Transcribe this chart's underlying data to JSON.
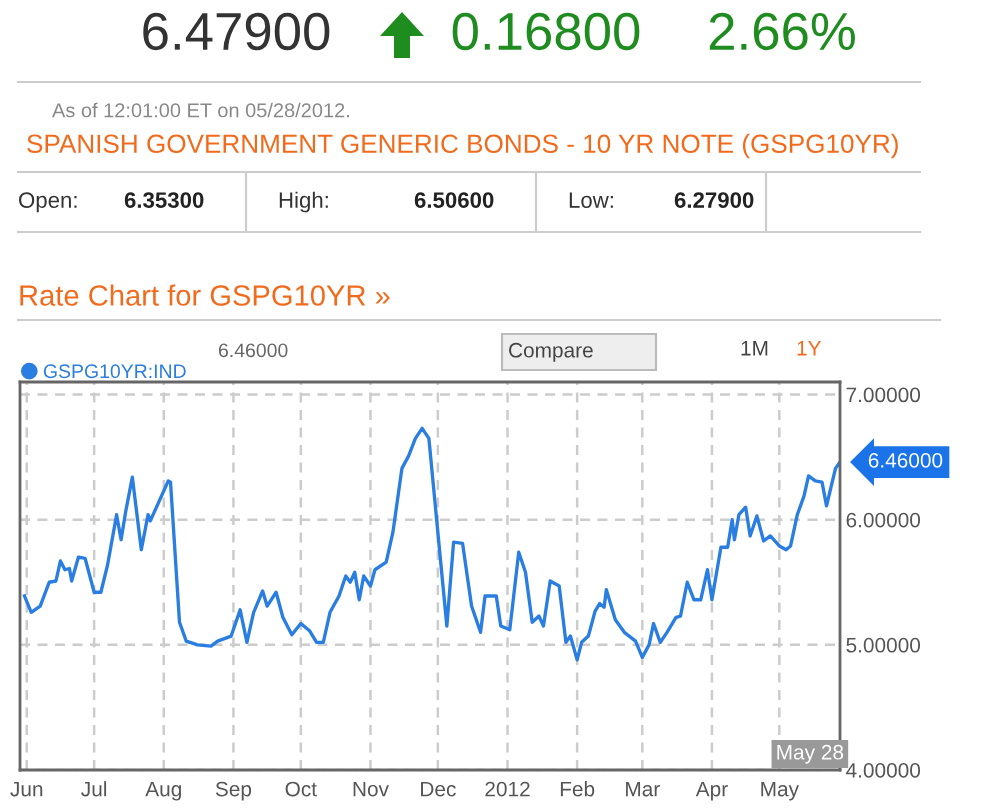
{
  "chart_data": {
    "type": "line",
    "title": "SPANISH GOVERNMENT GENERIC BONDS - 10 YR NOTE (GSPG10YR)",
    "subtitle": "Rate Chart for GSPG10YR »",
    "annotations": [
      "6.47900",
      "0.16800",
      "2.66%",
      "As of 12:01:00 ET on 05/28/2012.",
      "Open:",
      "6.35300",
      "High:",
      "6.50600",
      "Low:",
      "6.27900",
      "Compare",
      "1M",
      "1Y",
      "6.46000",
      {
        "text": "6.46000",
        "x": "2012-05-28",
        "y": 6.46
      },
      "May 28"
    ],
    "series": [
      {
        "name": "GSPG10YR:IND",
        "color": "#2a7de1",
        "x": [
          "2011-05-31",
          "2011-06-03",
          "2011-06-07",
          "2011-06-11",
          "2011-06-14",
          "2011-06-16",
          "2011-06-18",
          "2011-06-20",
          "2011-06-21",
          "2011-06-24",
          "2011-06-27",
          "2011-07-01",
          "2011-07-04",
          "2011-07-07",
          "2011-07-11",
          "2011-07-13",
          "2011-07-15",
          "2011-07-18",
          "2011-07-22",
          "2011-07-25",
          "2011-07-26",
          "2011-08-03",
          "2011-08-04",
          "2011-08-08",
          "2011-08-11",
          "2011-08-16",
          "2011-08-22",
          "2011-08-25",
          "2011-08-31",
          "2011-09-04",
          "2011-09-07",
          "2011-09-10",
          "2011-09-14",
          "2011-09-16",
          "2011-09-20",
          "2011-09-23",
          "2011-09-27",
          "2011-10-01",
          "2011-10-05",
          "2011-10-08",
          "2011-10-11",
          "2011-10-14",
          "2011-10-18",
          "2011-10-21",
          "2011-10-23",
          "2011-10-25",
          "2011-10-27",
          "2011-10-29",
          "2011-11-01",
          "2011-11-03",
          "2011-11-08",
          "2011-11-11",
          "2011-11-15",
          "2011-11-18",
          "2011-11-21",
          "2011-11-24",
          "2011-11-27",
          "2011-12-02",
          "2011-12-05",
          "2011-12-08",
          "2011-12-12",
          "2011-12-16",
          "2011-12-20",
          "2011-12-22",
          "2011-12-27",
          "2011-12-29",
          "2012-01-02",
          "2012-01-06",
          "2012-01-09",
          "2012-01-12",
          "2012-01-15",
          "2012-01-17",
          "2012-01-20",
          "2012-01-24",
          "2012-01-27",
          "2012-01-29",
          "2012-02-01",
          "2012-02-03",
          "2012-02-06",
          "2012-02-09",
          "2012-02-11",
          "2012-02-13",
          "2012-02-14",
          "2012-02-18",
          "2012-02-22",
          "2012-02-27",
          "2012-03-01",
          "2012-03-04",
          "2012-03-06",
          "2012-03-09",
          "2012-03-12",
          "2012-03-16",
          "2012-03-18",
          "2012-03-21",
          "2012-03-24",
          "2012-03-27",
          "2012-03-30",
          "2012-04-01",
          "2012-04-05",
          "2012-04-08",
          "2012-04-10",
          "2012-04-11",
          "2012-04-13",
          "2012-04-16",
          "2012-04-18",
          "2012-04-21",
          "2012-04-24",
          "2012-04-27",
          "2012-05-01",
          "2012-05-04",
          "2012-05-06",
          "2012-05-09",
          "2012-05-12",
          "2012-05-14",
          "2012-05-17",
          "2012-05-20",
          "2012-05-22",
          "2012-05-24",
          "2012-05-26",
          "2012-05-28"
        ],
        "values": [
          5.39,
          5.26,
          5.31,
          5.5,
          5.51,
          5.67,
          5.6,
          5.61,
          5.51,
          5.7,
          5.69,
          5.42,
          5.42,
          5.64,
          6.04,
          5.84,
          6.06,
          6.34,
          5.76,
          6.04,
          5.99,
          6.31,
          6.3,
          5.18,
          5.03,
          5.0,
          4.99,
          5.03,
          5.07,
          5.28,
          5.02,
          5.26,
          5.43,
          5.31,
          5.42,
          5.22,
          5.08,
          5.17,
          5.11,
          5.02,
          5.02,
          5.26,
          5.39,
          5.55,
          5.5,
          5.58,
          5.36,
          5.55,
          5.47,
          5.6,
          5.66,
          5.9,
          6.41,
          6.51,
          6.65,
          6.73,
          6.65,
          5.71,
          5.15,
          5.82,
          5.81,
          5.31,
          5.1,
          5.39,
          5.39,
          5.15,
          5.12,
          5.74,
          5.58,
          5.18,
          5.23,
          5.15,
          5.51,
          5.47,
          5.02,
          5.07,
          4.88,
          5.02,
          5.07,
          5.27,
          5.33,
          5.3,
          5.44,
          5.2,
          5.1,
          5.03,
          4.9,
          5.0,
          5.17,
          5.02,
          5.1,
          5.22,
          5.23,
          5.5,
          5.36,
          5.36,
          5.6,
          5.36,
          5.78,
          5.78,
          6.0,
          5.84,
          6.04,
          6.1,
          5.87,
          6.03,
          5.83,
          5.87,
          5.79,
          5.76,
          5.79,
          6.04,
          6.19,
          6.35,
          6.31,
          6.3,
          6.11,
          6.26,
          6.41,
          6.46
        ]
      }
    ],
    "xlim": [
      "2011-05-29",
      "2012-05-28"
    ],
    "xticks": [
      {
        "value": "2011-06-01",
        "label": "Jun"
      },
      {
        "value": "2011-07-01",
        "label": "Jul"
      },
      {
        "value": "2011-08-01",
        "label": "Aug"
      },
      {
        "value": "2011-09-01",
        "label": "Sep"
      },
      {
        "value": "2011-10-01",
        "label": "Oct"
      },
      {
        "value": "2011-11-01",
        "label": "Nov"
      },
      {
        "value": "2011-12-01",
        "label": "Dec"
      },
      {
        "value": "2012-01-01",
        "label": "2012"
      },
      {
        "value": "2012-02-01",
        "label": "Feb"
      },
      {
        "value": "2012-03-01",
        "label": "Mar"
      },
      {
        "value": "2012-04-01",
        "label": "Apr"
      },
      {
        "value": "2012-05-01",
        "label": "May"
      }
    ],
    "ylim": [
      4,
      7.1
    ],
    "yticks": [
      {
        "value": 4,
        "label": "4.00000"
      },
      {
        "value": 5,
        "label": "5.00000"
      },
      {
        "value": 6,
        "label": "6.00000"
      },
      {
        "value": 7,
        "label": "7.00000"
      }
    ],
    "grid": true,
    "legend": "top left",
    "marker": "none",
    "line_style": "solid"
  }
}
